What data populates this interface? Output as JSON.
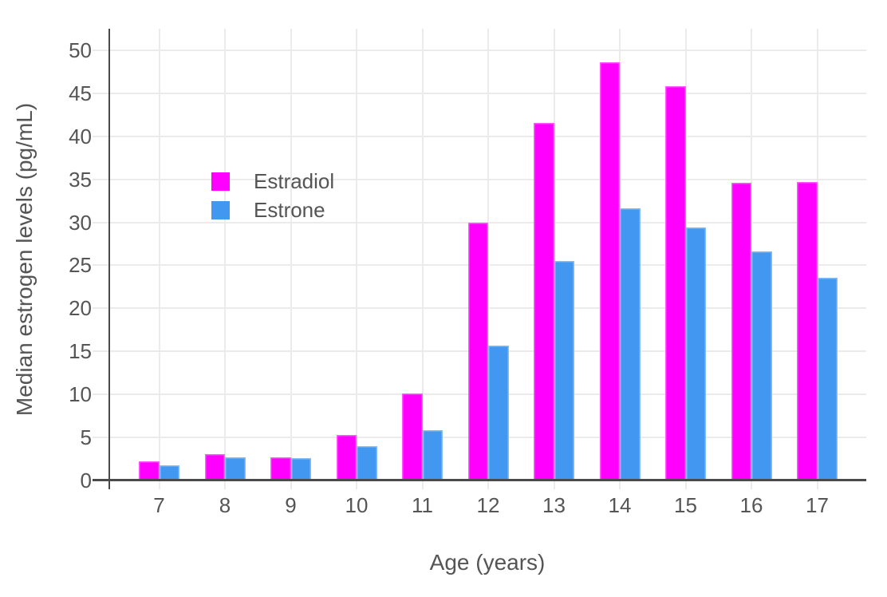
{
  "chart_data": {
    "type": "bar",
    "xlabel": "Age (years)",
    "ylabel": "Median estrogen levels (pg/mL)",
    "categories": [
      7,
      8,
      9,
      10,
      11,
      12,
      13,
      14,
      15,
      16,
      17
    ],
    "series": [
      {
        "name": "Estradiol",
        "color": "#FF00FF",
        "values": [
          2.2,
          3.1,
          2.7,
          5.3,
          10.1,
          30.0,
          41.6,
          48.6,
          45.8,
          34.6,
          34.7
        ]
      },
      {
        "name": "Estrone",
        "color": "#4298F0",
        "values": [
          1.8,
          2.7,
          2.6,
          4.0,
          5.8,
          15.7,
          25.5,
          31.6,
          29.4,
          26.6,
          23.6
        ]
      }
    ],
    "ylim": [
      0,
      52.5
    ],
    "yticks": [
      0,
      5,
      10,
      15,
      20,
      25,
      30,
      35,
      40,
      45,
      50
    ],
    "grid": true,
    "legend_position": "inside-top-left",
    "axis_color": "#4A4A4A",
    "grid_color": "#EBEBEB",
    "text_color": "#555555"
  }
}
